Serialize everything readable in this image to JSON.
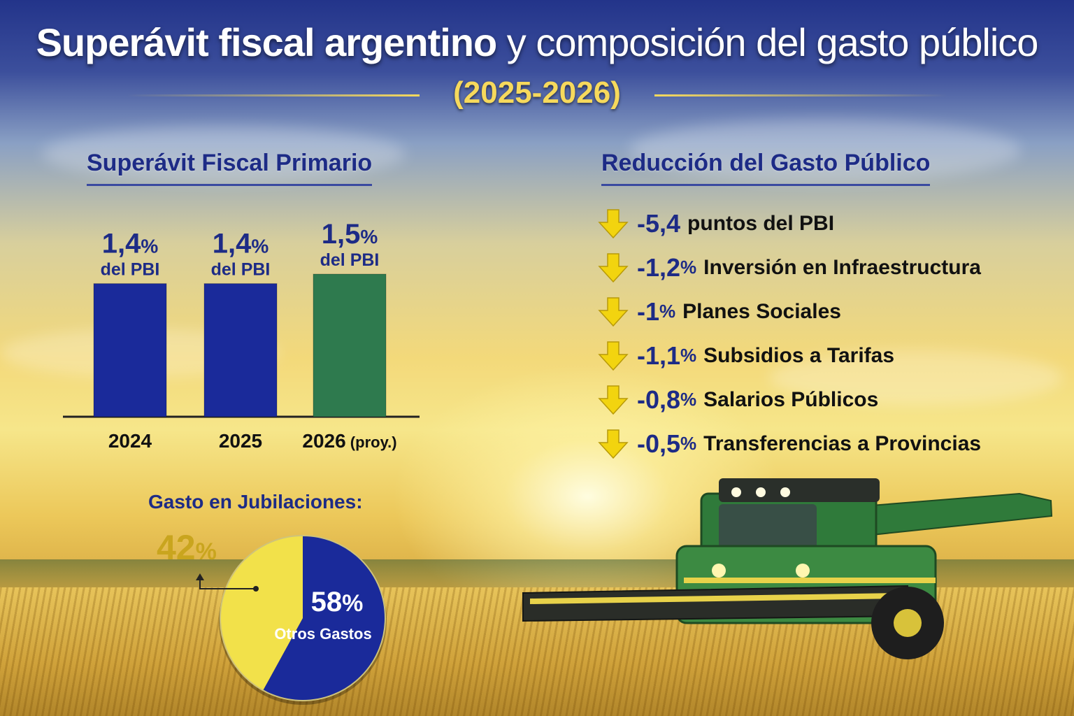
{
  "header": {
    "title_bold": "Superávit fiscal argentino",
    "title_rest": "y composición del gasto público",
    "subtitle": "(2025-2026)"
  },
  "surplus": {
    "section_title": "Superávit Fiscal Primario"
  },
  "spending": {
    "section_title": "Reducción del Gasto Público",
    "items": [
      {
        "value": "-5,4",
        "pct": "",
        "label": "puntos del PBI"
      },
      {
        "value": "-1,2",
        "pct": "%",
        "label": "Inversión en Infraestructura"
      },
      {
        "value": "-1",
        "pct": "%",
        "label": "Planes Sociales"
      },
      {
        "value": "-1,1",
        "pct": "%",
        "label": "Subsidios a Tarifas"
      },
      {
        "value": "-0,8",
        "pct": "%",
        "label": "Salarios Públicos"
      },
      {
        "value": "-0,5",
        "pct": "%",
        "label": "Transferencias a Provincias"
      }
    ]
  },
  "pensions": {
    "title": "Gasto en Jubilaciones:"
  },
  "colors": {
    "navy": "#1d2b86",
    "bar_blue": "#1a2a9a",
    "bar_green": "#2e7a4e",
    "gold": "#c9a51e",
    "pie_yellow": "#f2e14a",
    "pie_blue": "#1a2a9a",
    "arrow_yellow": "#f2d40f"
  },
  "chart_data": [
    {
      "type": "bar",
      "title": "Superávit Fiscal Primario",
      "categories": [
        "2024",
        "2025",
        "2026"
      ],
      "category_suffix": [
        "",
        "",
        " (proy.)"
      ],
      "values": [
        1.4,
        1.4,
        1.5
      ],
      "value_labels": [
        "1,4",
        "1,4",
        "1,5"
      ],
      "unit": "%",
      "unit_label": "del PBI",
      "ylim": [
        0,
        1.5
      ],
      "grid": false
    },
    {
      "type": "pie",
      "title": "Gasto en Jubilaciones:",
      "slices": [
        {
          "label": "",
          "value": 42,
          "display": "42",
          "unit": "%"
        },
        {
          "label": "Otros Gastos",
          "value": 58,
          "display": "58",
          "unit": "%"
        }
      ]
    }
  ]
}
